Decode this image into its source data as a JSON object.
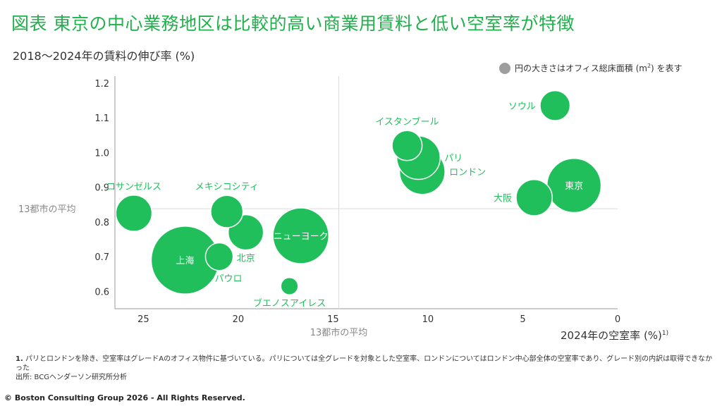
{
  "header": {
    "title": "図表  東京の中心業務地区は比較的高い商業用賃料と低い空室率が特徴",
    "ylabel": "2018〜2024年の賃料の伸び率 (%)"
  },
  "legend": {
    "text": "円の大きさはオフィス総床面積 (m",
    "sup": "2",
    "text_end": ") を表す"
  },
  "footer": {
    "note_num": "1.",
    "note": "パリとロンドンを除き、空室率はグレードAのオフィス物件に基づいている。パリについては全グレードを対象とした空室率、ロンドンについてはロンドン中心部全体の空室率であり、グレード別の内訳は取得できなかった",
    "source": "出所: BCGヘンダーソン研究所分析",
    "copyright": "© Boston Consulting Group 2026 - All Rights Reserved."
  },
  "chart_data": {
    "type": "scatter",
    "xlabel": "2024年の空室率 (%)",
    "xlabel_sup": "1)",
    "x_axis_reversed": true,
    "xlim": [
      26.5,
      0
    ],
    "ylim": [
      0.55,
      1.22
    ],
    "xticks": [
      25,
      20,
      15,
      10,
      5,
      0
    ],
    "yticks": [
      0.6,
      0.7,
      0.8,
      0.9,
      1.0,
      1.1,
      1.2
    ],
    "avg_x": 14.7,
    "avg_y": 0.838,
    "avg_x_label": "13都市の平均",
    "avg_y_label": "13都市の平均",
    "bubble_color": "#21bf5b",
    "points": [
      {
        "name": "ロサンゼルス",
        "x": 25.5,
        "y": 0.825,
        "size": 1.6,
        "label_pos": "above"
      },
      {
        "name": "上海",
        "x": 22.8,
        "y": 0.69,
        "size": 7.0,
        "label_pos": "inside"
      },
      {
        "name": "サンパウロ",
        "x": 21.0,
        "y": 0.7,
        "size": 0.8,
        "label_pos": "below"
      },
      {
        "name": "メキシコシティ",
        "x": 20.6,
        "y": 0.83,
        "size": 1.2,
        "label_pos": "above"
      },
      {
        "name": "北京",
        "x": 19.6,
        "y": 0.77,
        "size": 1.5,
        "label_pos": "below"
      },
      {
        "name": "ニューヨーク",
        "x": 16.7,
        "y": 0.76,
        "size": 4.5,
        "label_pos": "inside"
      },
      {
        "name": "ブエノスアイレス",
        "x": 17.3,
        "y": 0.615,
        "size": 0.2,
        "label_pos": "below"
      },
      {
        "name": "イスタンブール",
        "x": 11.1,
        "y": 1.02,
        "size": 1.0,
        "label_pos": "above"
      },
      {
        "name": "パリ",
        "x": 10.5,
        "y": 0.985,
        "size": 2.5,
        "label_pos": "right"
      },
      {
        "name": "ロンドン",
        "x": 10.3,
        "y": 0.945,
        "size": 2.8,
        "label_pos": "right"
      },
      {
        "name": "ソウル",
        "x": 3.3,
        "y": 1.135,
        "size": 1.0,
        "label_pos": "left"
      },
      {
        "name": "大阪",
        "x": 4.4,
        "y": 0.87,
        "size": 1.6,
        "label_pos": "left"
      },
      {
        "name": "東京",
        "x": 2.3,
        "y": 0.905,
        "size": 4.2,
        "label_pos": "inside"
      }
    ]
  }
}
